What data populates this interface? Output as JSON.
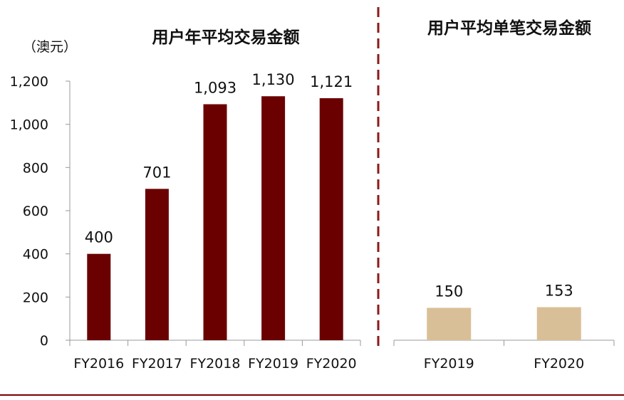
{
  "chart_data": [
    {
      "type": "bar",
      "title": "用户年平均交易金额",
      "unit_label": "（澳元）",
      "categories": [
        "FY2016",
        "FY2017",
        "FY2018",
        "FY2019",
        "FY2020"
      ],
      "values": [
        400,
        701,
        1093,
        1130,
        1121
      ],
      "value_labels": [
        "400",
        "701",
        "1,093",
        "1,130",
        "1,121"
      ],
      "ylim": [
        0,
        1200
      ],
      "yticks": [
        0,
        200,
        400,
        600,
        800,
        1000,
        1200
      ],
      "ytick_labels": [
        "0",
        "200",
        "400",
        "600",
        "800",
        "1,000",
        "1,200"
      ],
      "bar_color": "#6b0000",
      "grid": false
    },
    {
      "type": "bar",
      "title": "用户平均单笔交易金额",
      "categories": [
        "FY2019",
        "FY2020"
      ],
      "values": [
        150,
        153
      ],
      "value_labels": [
        "150",
        "153"
      ],
      "ylim": [
        0,
        1200
      ],
      "bar_color": "#d9bf97",
      "grid": false
    }
  ],
  "colors": {
    "divider": "#8b1a1a",
    "axis": "#999999",
    "rule": "#7a0000"
  }
}
